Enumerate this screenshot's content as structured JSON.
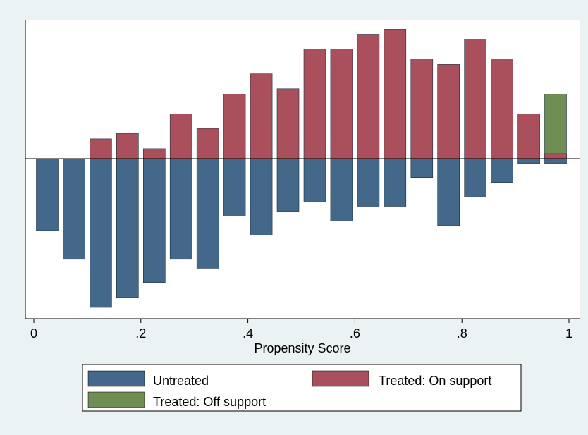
{
  "chart_data": {
    "type": "bar",
    "xlabel": "Propensity Score",
    "ylabel": "",
    "title": "",
    "xlim": [
      0,
      1
    ],
    "ylim": [
      -0.3,
      0.28
    ],
    "x_ticks": [
      0,
      0.2,
      0.4,
      0.6,
      0.8,
      1
    ],
    "x_tick_labels": [
      "0",
      ".2",
      ".4",
      ".6",
      ".8",
      "1"
    ],
    "y_tick_labels_shown": false,
    "grid": false,
    "bin_width": 0.05,
    "legend_position": "bottom",
    "x": [
      0.025,
      0.075,
      0.125,
      0.175,
      0.225,
      0.275,
      0.325,
      0.375,
      0.425,
      0.475,
      0.525,
      0.575,
      0.625,
      0.675,
      0.725,
      0.775,
      0.825,
      0.875,
      0.925,
      0.975
    ],
    "series": [
      {
        "name": "Untreated",
        "color": "#436889",
        "values": [
          -0.145,
          -0.203,
          -0.3,
          -0.28,
          -0.25,
          -0.203,
          -0.221,
          -0.116,
          -0.154,
          -0.106,
          -0.087,
          -0.126,
          -0.096,
          -0.096,
          -0.038,
          -0.135,
          -0.077,
          -0.048,
          -0.01,
          -0.01
        ]
      },
      {
        "name": "Treated: On support",
        "color": "#a9505c",
        "values": [
          null,
          null,
          0.04,
          0.051,
          0.02,
          0.09,
          0.061,
          0.13,
          0.171,
          0.141,
          0.221,
          0.221,
          0.251,
          0.261,
          0.201,
          0.19,
          0.241,
          0.201,
          0.09,
          0.01
        ]
      },
      {
        "name": "Treated: Off support",
        "color": "#6e8e54",
        "values": [
          null,
          null,
          null,
          null,
          null,
          null,
          null,
          null,
          null,
          null,
          null,
          null,
          null,
          null,
          null,
          null,
          null,
          null,
          null,
          0.13
        ]
      }
    ]
  },
  "legend": {
    "untreated": "Untreated",
    "on_support": "Treated: On support",
    "off_support": "Treated: Off support"
  }
}
